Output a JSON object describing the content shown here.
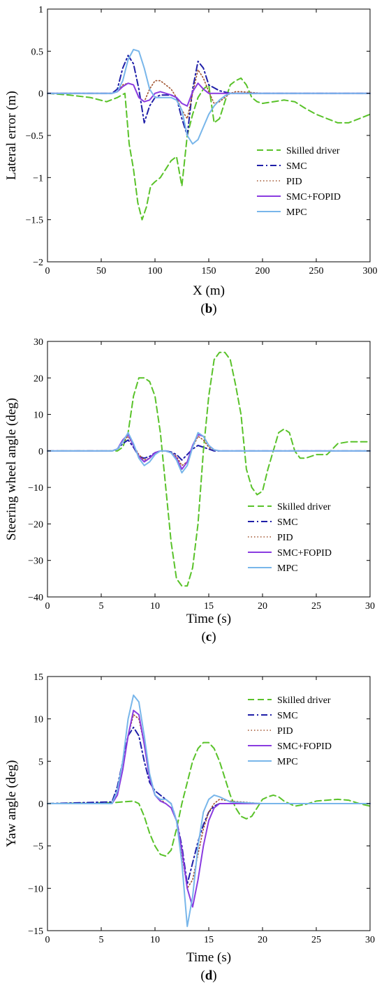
{
  "colors": {
    "skilled_driver": "#59c229",
    "smc": "#1f1fa8",
    "pid": "#a0522d",
    "smc_fopid": "#8a3be0",
    "mpc": "#78b6ea"
  },
  "chart_data": [
    {
      "type": "line",
      "caption": "b",
      "xlabel": "X (m)",
      "ylabel": "Lateral error (m)",
      "xlim": [
        0,
        300
      ],
      "ylim": [
        -2,
        1
      ],
      "xticks": [
        0,
        50,
        100,
        150,
        200,
        250,
        300
      ],
      "yticks": [
        -2,
        -1.5,
        -1,
        -0.5,
        0,
        0.5,
        1
      ],
      "legend_position": "lower-right",
      "series": [
        {
          "name": "Skilled driver",
          "key": "skilled_driver",
          "dash": "dashed",
          "x": [
            0,
            20,
            40,
            55,
            65,
            72,
            76,
            80,
            84,
            88,
            92,
            96,
            100,
            105,
            110,
            115,
            120,
            125,
            130,
            135,
            140,
            145,
            150,
            155,
            160,
            165,
            170,
            175,
            180,
            185,
            190,
            195,
            200,
            210,
            220,
            230,
            240,
            250,
            260,
            270,
            280,
            290,
            300
          ],
          "y": [
            0,
            -0.02,
            -0.05,
            -0.1,
            -0.05,
            0,
            -0.6,
            -0.9,
            -1.3,
            -1.5,
            -1.35,
            -1.1,
            -1.05,
            -1.0,
            -0.9,
            -0.8,
            -0.75,
            -1.1,
            -0.5,
            -0.25,
            -0.05,
            0.05,
            0.1,
            -0.35,
            -0.3,
            -0.1,
            0.1,
            0.15,
            0.18,
            0.1,
            -0.05,
            -0.1,
            -0.12,
            -0.1,
            -0.08,
            -0.1,
            -0.18,
            -0.25,
            -0.3,
            -0.35,
            -0.35,
            -0.3,
            -0.25
          ]
        },
        {
          "name": "SMC",
          "key": "smc",
          "dash": "dashdot",
          "x": [
            0,
            60,
            65,
            70,
            75,
            80,
            85,
            90,
            95,
            100,
            105,
            110,
            115,
            120,
            125,
            130,
            135,
            140,
            145,
            150,
            160,
            170,
            180,
            200,
            250,
            300
          ],
          "y": [
            0,
            0,
            0.05,
            0.3,
            0.45,
            0.35,
            0.05,
            -0.35,
            -0.15,
            -0.05,
            -0.02,
            -0.02,
            -0.02,
            -0.05,
            -0.3,
            -0.5,
            0.05,
            0.38,
            0.3,
            0.1,
            0.03,
            0,
            0,
            0,
            0,
            0
          ]
        },
        {
          "name": "PID",
          "key": "pid",
          "dash": "dotted",
          "x": [
            0,
            60,
            65,
            70,
            75,
            80,
            85,
            90,
            95,
            100,
            105,
            110,
            115,
            120,
            125,
            130,
            135,
            140,
            145,
            150,
            155,
            160,
            165,
            170,
            175,
            180,
            200,
            250,
            300
          ],
          "y": [
            0,
            0,
            0.02,
            0.1,
            0.12,
            0.1,
            -0.05,
            -0.1,
            0.05,
            0.15,
            0.15,
            0.1,
            0.05,
            -0.05,
            -0.2,
            -0.3,
            0.0,
            0.28,
            0.18,
            0.02,
            -0.12,
            -0.1,
            -0.05,
            0.0,
            0.02,
            0.02,
            0,
            0,
            0
          ]
        },
        {
          "name": "SMC+FOPID",
          "key": "smc_fopid",
          "dash": "solid",
          "x": [
            0,
            60,
            65,
            70,
            75,
            80,
            85,
            90,
            95,
            100,
            105,
            110,
            115,
            120,
            125,
            130,
            135,
            140,
            145,
            150,
            160,
            200,
            250,
            300
          ],
          "y": [
            0,
            0,
            0.02,
            0.08,
            0.12,
            0.1,
            -0.05,
            -0.1,
            -0.08,
            0.0,
            0.02,
            0.0,
            -0.02,
            -0.05,
            -0.12,
            -0.15,
            0.02,
            0.12,
            0.05,
            0.0,
            0,
            0,
            0,
            0
          ]
        },
        {
          "name": "MPC",
          "key": "mpc",
          "dash": "solid",
          "x": [
            0,
            60,
            65,
            70,
            75,
            80,
            85,
            90,
            95,
            100,
            105,
            110,
            115,
            120,
            125,
            130,
            135,
            140,
            145,
            150,
            155,
            160,
            165,
            170,
            180,
            200,
            250,
            300
          ],
          "y": [
            0,
            0,
            0.02,
            0.15,
            0.4,
            0.52,
            0.5,
            0.3,
            0.05,
            -0.05,
            -0.05,
            -0.05,
            -0.05,
            -0.08,
            -0.2,
            -0.5,
            -0.6,
            -0.55,
            -0.4,
            -0.25,
            -0.15,
            -0.08,
            -0.03,
            0.0,
            0.0,
            0,
            0,
            0
          ]
        }
      ]
    },
    {
      "type": "line",
      "caption": "c",
      "xlabel": "Time (s)",
      "ylabel": "Steering wheel angle (deg)",
      "xlim": [
        0,
        30
      ],
      "ylim": [
        -40,
        30
      ],
      "xticks": [
        0,
        5,
        10,
        15,
        20,
        25,
        30
      ],
      "yticks": [
        -40,
        -30,
        -20,
        -10,
        0,
        10,
        20,
        30
      ],
      "legend_position": "lower-right",
      "series": [
        {
          "name": "Skilled driver",
          "key": "skilled_driver",
          "dash": "dashed",
          "x": [
            0,
            6,
            6.5,
            7,
            7.5,
            8,
            8.5,
            9,
            9.5,
            10,
            10.5,
            11,
            11.5,
            12,
            12.5,
            13,
            13.5,
            14,
            14.5,
            15,
            15.5,
            16,
            16.5,
            17,
            17.5,
            18,
            18.5,
            19,
            19.5,
            20,
            20.5,
            21,
            21.5,
            22,
            22.5,
            23,
            23.5,
            24,
            25,
            26,
            27,
            28,
            29,
            30
          ],
          "y": [
            0,
            0,
            0,
            1,
            5,
            15,
            20,
            20,
            19,
            15,
            5,
            -10,
            -25,
            -35,
            -37,
            -37,
            -32,
            -20,
            0,
            15,
            25,
            27,
            27,
            25,
            18,
            10,
            -5,
            -10,
            -12,
            -11,
            -5,
            0,
            5,
            6,
            5,
            0,
            -2,
            -2,
            -1,
            -1,
            2,
            2.5,
            2.5,
            2.5
          ]
        },
        {
          "name": "SMC",
          "key": "smc",
          "dash": "dashdot",
          "x": [
            0,
            6,
            6.5,
            7,
            7.5,
            8,
            8.5,
            9,
            9.5,
            10,
            10.5,
            11,
            11.5,
            12,
            12.5,
            13,
            13.5,
            14,
            14.5,
            15,
            15.5,
            16,
            17,
            18,
            20,
            25,
            30
          ],
          "y": [
            0,
            0,
            0.5,
            2,
            3,
            1,
            -1.5,
            -2,
            -1.5,
            -0.5,
            0,
            0,
            -0.3,
            -1,
            -2.5,
            -1,
            0.5,
            1.5,
            1,
            0.5,
            0,
            0,
            0,
            0,
            0,
            0,
            0
          ]
        },
        {
          "name": "PID",
          "key": "pid",
          "dash": "dotted",
          "x": [
            0,
            6,
            6.5,
            7,
            7.5,
            8,
            8.5,
            9,
            9.5,
            10,
            10.5,
            11,
            11.5,
            12,
            12.5,
            13,
            13.5,
            14,
            14.5,
            15,
            15.5,
            16,
            17,
            20,
            30
          ],
          "y": [
            0,
            0,
            0.5,
            2.5,
            4,
            1.5,
            -1,
            -2.5,
            -2,
            -0.5,
            0,
            0,
            -0.5,
            -1.5,
            -4,
            -3,
            1,
            4,
            3,
            1,
            0.2,
            0,
            0,
            0,
            0
          ]
        },
        {
          "name": "SMC+FOPID",
          "key": "smc_fopid",
          "dash": "solid",
          "x": [
            0,
            6,
            6.5,
            7,
            7.5,
            8,
            8.5,
            9,
            9.5,
            10,
            10.5,
            11,
            11.5,
            12,
            12.5,
            13,
            13.5,
            14,
            14.5,
            15,
            15.5,
            16,
            17,
            20,
            30
          ],
          "y": [
            0,
            0,
            0.5,
            3,
            4.5,
            1.5,
            -1.5,
            -3,
            -2,
            -0.5,
            0,
            0,
            -0.5,
            -2,
            -5,
            -3,
            1.5,
            4.5,
            4,
            1.5,
            0.3,
            0,
            0,
            0,
            0
          ]
        },
        {
          "name": "MPC",
          "key": "mpc",
          "dash": "solid",
          "x": [
            0,
            6,
            6.5,
            7,
            7.5,
            8,
            8.5,
            9,
            9.5,
            10,
            10.5,
            11,
            11.5,
            12,
            12.5,
            13,
            13.5,
            14,
            14.5,
            15,
            15.5,
            16,
            17,
            20,
            30
          ],
          "y": [
            0,
            0,
            0.5,
            2.5,
            5,
            2,
            -2,
            -4,
            -3,
            -1,
            0,
            0,
            -0.5,
            -2.5,
            -6,
            -4,
            1,
            5,
            4,
            1.5,
            0.3,
            0,
            0,
            0,
            0
          ]
        }
      ]
    },
    {
      "type": "line",
      "caption": "d",
      "xlabel": "Time (s)",
      "ylabel": "Yaw angle (deg)",
      "xlim": [
        0,
        30
      ],
      "ylim": [
        -15,
        15
      ],
      "xticks": [
        0,
        5,
        10,
        15,
        20,
        25,
        30
      ],
      "yticks": [
        -15,
        -10,
        -5,
        0,
        5,
        10,
        15
      ],
      "legend_position": "top-right",
      "series": [
        {
          "name": "Skilled driver",
          "key": "skilled_driver",
          "dash": "dashed",
          "x": [
            0,
            6,
            7,
            8,
            8.5,
            9,
            9.5,
            10,
            10.5,
            11,
            11.5,
            12,
            12.5,
            13,
            13.5,
            14,
            14.5,
            15,
            15.5,
            16,
            16.5,
            17,
            17.5,
            18,
            18.5,
            19,
            19.5,
            20,
            20.5,
            21,
            21.5,
            22,
            23,
            24,
            25,
            26,
            27,
            28,
            29,
            30
          ],
          "y": [
            0,
            0.1,
            0.2,
            0.3,
            0,
            -1.5,
            -3.5,
            -5,
            -6,
            -6.2,
            -5.5,
            -3,
            0,
            2.5,
            5,
            6.5,
            7.2,
            7.2,
            6.5,
            5,
            3,
            1,
            -0.5,
            -1.5,
            -1.8,
            -1.5,
            -0.5,
            0.5,
            0.8,
            1,
            0.8,
            0.3,
            -0.3,
            -0.1,
            0.3,
            0.4,
            0.5,
            0.4,
            0,
            -0.3
          ]
        },
        {
          "name": "SMC",
          "key": "smc",
          "dash": "dashdot",
          "x": [
            0,
            6,
            6.5,
            7,
            7.5,
            8,
            8.5,
            9,
            9.5,
            10,
            10.5,
            11,
            11.5,
            12,
            12.5,
            13,
            13.5,
            14,
            14.5,
            15,
            15.5,
            16,
            17,
            20,
            30
          ],
          "y": [
            0,
            0.2,
            2,
            5,
            8,
            9,
            8,
            5,
            2.5,
            1.5,
            1,
            0.5,
            0,
            -2,
            -5,
            -9.5,
            -7,
            -4.5,
            -2.5,
            -1,
            -0.3,
            0,
            0,
            0,
            0
          ]
        },
        {
          "name": "PID",
          "key": "pid",
          "dash": "dotted",
          "x": [
            0,
            6,
            6.5,
            7,
            7.5,
            8,
            8.5,
            9,
            9.5,
            10,
            10.5,
            11,
            11.5,
            12,
            12.5,
            13,
            13.5,
            14,
            14.5,
            15,
            15.5,
            16,
            17,
            20,
            30
          ],
          "y": [
            0,
            0,
            1,
            4,
            8,
            10.5,
            10,
            7,
            3,
            1,
            0.5,
            0,
            -0.5,
            -2,
            -6,
            -10,
            -9,
            -6,
            -3,
            -1,
            0,
            0.5,
            0.3,
            0,
            0
          ]
        },
        {
          "name": "SMC+FOPID",
          "key": "smc_fopid",
          "dash": "solid",
          "x": [
            0,
            6,
            6.5,
            7,
            7.5,
            8,
            8.5,
            9,
            9.5,
            10,
            10.5,
            11,
            11.5,
            12,
            12.5,
            13,
            13.5,
            14,
            14.5,
            15,
            15.5,
            16,
            17,
            20,
            30
          ],
          "y": [
            0,
            0,
            1,
            4,
            8,
            11,
            10.5,
            7,
            3,
            1,
            0.3,
            0,
            -0.5,
            -2,
            -5.5,
            -10,
            -12.2,
            -9,
            -5,
            -2,
            -0.5,
            0,
            0,
            0,
            0
          ]
        },
        {
          "name": "MPC",
          "key": "mpc",
          "dash": "solid",
          "x": [
            0,
            6,
            6.5,
            7,
            7.5,
            8,
            8.5,
            9,
            9.5,
            10,
            10.5,
            11,
            11.5,
            12,
            12.5,
            13,
            13.5,
            14,
            14.5,
            15,
            15.5,
            16,
            17,
            20,
            30
          ],
          "y": [
            0,
            0,
            1.5,
            5,
            10,
            12.8,
            12,
            8,
            3.5,
            1,
            0.5,
            0.5,
            0,
            -2,
            -7,
            -14.5,
            -11,
            -5,
            -1,
            0.5,
            1,
            0.8,
            0.2,
            0,
            0
          ]
        }
      ]
    }
  ]
}
